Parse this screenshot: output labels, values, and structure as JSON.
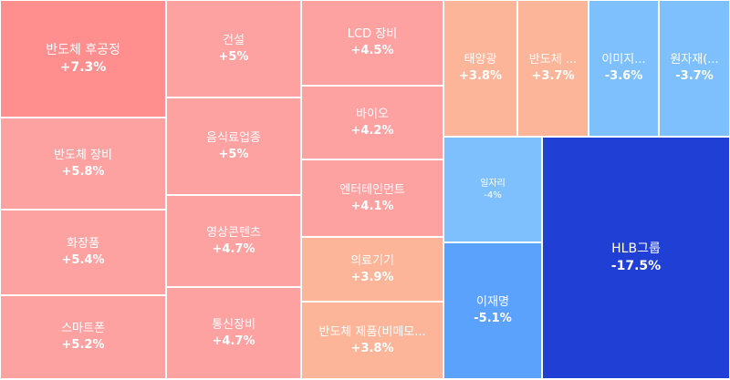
{
  "chart_data": {
    "type": "treemap",
    "title": "",
    "sectors": [
      {
        "name": "반도체 후공정",
        "label": "+7.3%",
        "value": 7.3,
        "color": "#ff8e8e"
      },
      {
        "name": "반도체 장비",
        "label": "+5.8%",
        "value": 5.8,
        "color": "#fea2a1"
      },
      {
        "name": "화장품",
        "label": "+5.4%",
        "value": 5.4,
        "color": "#fea2a1"
      },
      {
        "name": "스마트폰",
        "label": "+5.2%",
        "value": 5.2,
        "color": "#fea2a1"
      },
      {
        "name": "건설",
        "label": "+5%",
        "value": 5.0,
        "color": "#fea2a1"
      },
      {
        "name": "음식료업종",
        "label": "+5%",
        "value": 5.0,
        "color": "#fea2a1"
      },
      {
        "name": "영상콘텐츠",
        "label": "+4.7%",
        "value": 4.7,
        "color": "#fea2a1"
      },
      {
        "name": "통신장비",
        "label": "+4.7%",
        "value": 4.7,
        "color": "#fea2a1"
      },
      {
        "name": "LCD 장비",
        "label": "+4.5%",
        "value": 4.5,
        "color": "#fea2a1"
      },
      {
        "name": "바이오",
        "label": "+4.2%",
        "value": 4.2,
        "color": "#fea2a1"
      },
      {
        "name": "엔터테인먼트",
        "label": "+4.1%",
        "value": 4.1,
        "color": "#fea2a1"
      },
      {
        "name": "의료기기",
        "label": "+3.9%",
        "value": 3.9,
        "color": "#fdb59a"
      },
      {
        "name": "반도체 제품(비메모...",
        "label": "+3.8%",
        "value": 3.8,
        "color": "#fdb59a"
      },
      {
        "name": "태양광",
        "label": "+3.8%",
        "value": 3.8,
        "color": "#fdb59a"
      },
      {
        "name": "반도체 ...",
        "label": "+3.7%",
        "value": 3.7,
        "color": "#fdb59a"
      },
      {
        "name": "이미지...",
        "label": "-3.6%",
        "value": -3.6,
        "color": "#7dc0fd"
      },
      {
        "name": "원자재(...",
        "label": "-3.7%",
        "value": -3.7,
        "color": "#7dc0fd"
      },
      {
        "name": "일자리",
        "label": "-4%",
        "value": -4.0,
        "color": "#7dc0fd"
      },
      {
        "name": "이재명",
        "label": "-5.1%",
        "value": -5.1,
        "color": "#5aa2fc"
      },
      {
        "name": "HLB그룹",
        "label": "-17.5%",
        "value": -17.5,
        "color": "#1f3fd5"
      }
    ]
  }
}
